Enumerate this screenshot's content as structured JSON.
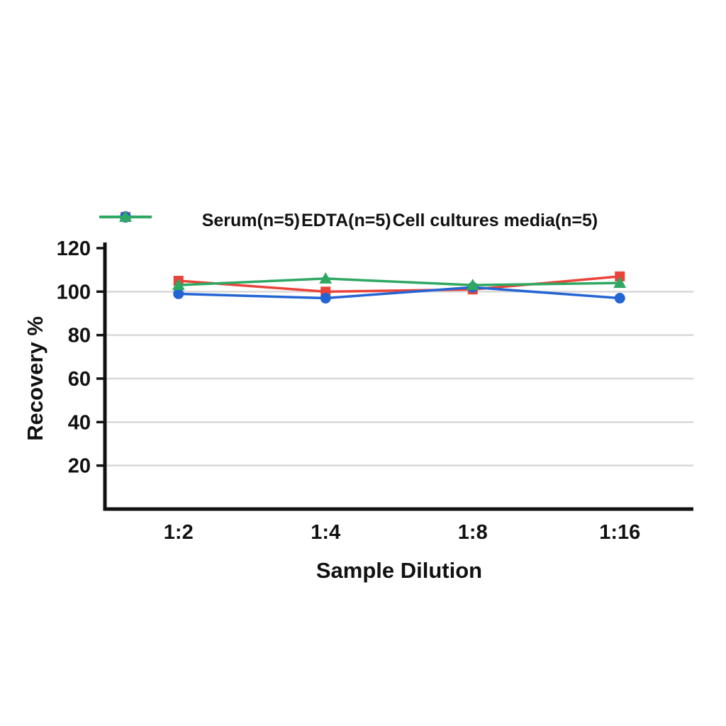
{
  "chart_data": {
    "type": "line",
    "title": "",
    "xlabel": "Sample Dilution",
    "ylabel": "Recovery %",
    "categories": [
      "1:2",
      "1:4",
      "1:8",
      "1:16"
    ],
    "ylim": [
      0,
      120
    ],
    "yticks": [
      20,
      40,
      60,
      80,
      100,
      120
    ],
    "grid": "horizontal",
    "legend_position": "top",
    "colors": {
      "axis": "#111111",
      "gridline": "#d8d8d8",
      "serum": "#ea4339",
      "edta": "#2465d4",
      "cell_media": "#2ea862"
    },
    "series": [
      {
        "name": "Serum(n=5)",
        "marker": "square",
        "color": "#ea4339",
        "values": [
          105,
          100,
          101,
          107
        ]
      },
      {
        "name": "EDTA(n=5)",
        "marker": "circle",
        "color": "#2465d4",
        "values": [
          99,
          97,
          102,
          97
        ]
      },
      {
        "name": "Cell cultures media(n=5)",
        "marker": "triangle",
        "color": "#2ea862",
        "values": [
          103,
          106,
          103,
          104
        ]
      }
    ]
  }
}
